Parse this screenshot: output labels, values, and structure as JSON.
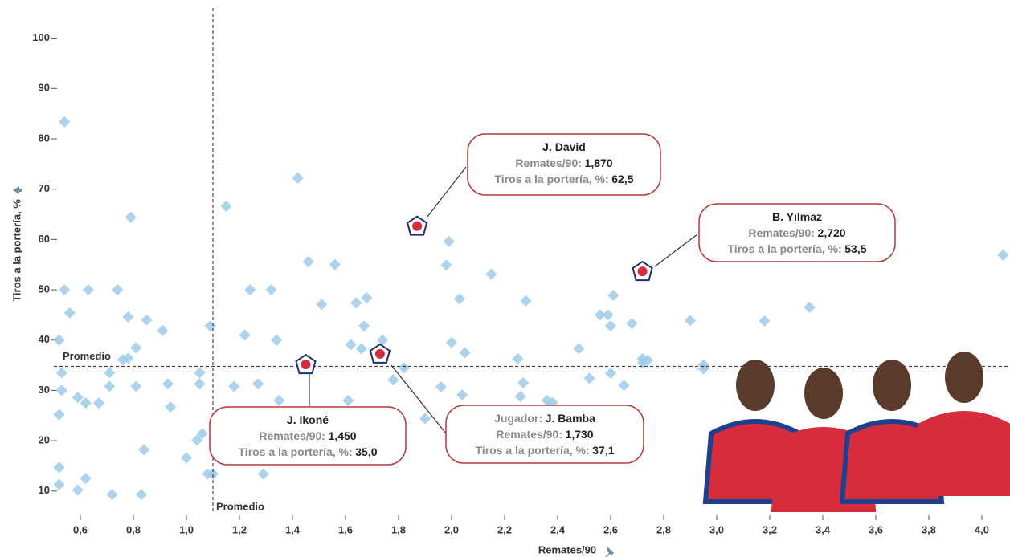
{
  "chart_data": {
    "type": "scatter",
    "x_label": "Remates/90",
    "y_label": "Tiros a la portería, %",
    "xlim": [
      0.5,
      4.1
    ],
    "ylim": [
      5.5,
      106
    ],
    "xticks": [
      {
        "value": 0.6,
        "label": "0,6"
      },
      {
        "value": 0.8,
        "label": "0,8"
      },
      {
        "value": 1.0,
        "label": "1,0"
      },
      {
        "value": 1.2,
        "label": "1,2"
      },
      {
        "value": 1.4,
        "label": "1,4"
      },
      {
        "value": 1.6,
        "label": "1,6"
      },
      {
        "value": 1.8,
        "label": "1,8"
      },
      {
        "value": 2.0,
        "label": "2,0"
      },
      {
        "value": 2.2,
        "label": "2,2"
      },
      {
        "value": 2.4,
        "label": "2,4"
      },
      {
        "value": 2.6,
        "label": "2,6"
      },
      {
        "value": 2.8,
        "label": "2,8"
      },
      {
        "value": 3.0,
        "label": "3,0"
      },
      {
        "value": 3.2,
        "label": "3,2"
      },
      {
        "value": 3.4,
        "label": "3,4"
      },
      {
        "value": 3.6,
        "label": "3,6"
      },
      {
        "value": 3.8,
        "label": "3,8"
      },
      {
        "value": 4.0,
        "label": "4,0"
      }
    ],
    "yticks": [
      10,
      20,
      30,
      40,
      50,
      60,
      70,
      80,
      90,
      100
    ],
    "average_label": "Promedio",
    "x_average": 1.1,
    "y_average": 34.8,
    "color": "#9ecae9",
    "x": [
      0.54,
      0.54,
      0.56,
      0.63,
      0.74,
      0.79,
      0.78,
      0.85,
      0.81,
      0.78,
      0.76,
      0.91,
      0.52,
      0.53,
      0.53,
      0.52,
      0.59,
      0.62,
      0.67,
      0.71,
      0.71,
      0.81,
      0.93,
      0.94,
      0.84,
      1.0,
      1.04,
      1.06,
      1.05,
      1.05,
      1.09,
      1.08,
      1.1,
      0.59,
      0.62,
      0.72,
      0.83,
      0.52,
      0.52,
      1.15,
      1.42,
      1.46,
      1.56,
      1.51,
      1.24,
      1.32,
      1.22,
      1.34,
      1.18,
      1.27,
      1.35,
      1.29,
      1.64,
      1.68,
      1.67,
      1.62,
      1.66,
      1.74,
      1.61,
      1.78,
      1.82,
      1.77,
      1.9,
      1.98,
      1.99,
      2.03,
      2.0,
      2.05,
      1.96,
      2.04,
      2.15,
      2.28,
      2.25,
      2.27,
      2.26,
      2.36,
      2.38,
      2.48,
      2.52,
      2.56,
      2.59,
      2.61,
      2.6,
      2.6,
      2.65,
      2.68,
      2.72,
      2.74,
      2.72,
      2.9,
      2.95,
      2.95,
      3.18,
      3.35,
      4.08
    ],
    "values": [
      83.4,
      50,
      45.4,
      50,
      50,
      64.4,
      44.6,
      44,
      38.5,
      36.4,
      36.1,
      41.9,
      40,
      33.5,
      30,
      25.2,
      28.6,
      27.5,
      27.5,
      30.8,
      33.5,
      30.8,
      31.3,
      26.7,
      18.2,
      16.6,
      20.1,
      21.4,
      33.5,
      31.3,
      42.8,
      13.4,
      13.4,
      10.2,
      12.5,
      9.3,
      9.3,
      14.7,
      11.3,
      66.6,
      72.2,
      55.6,
      55,
      47.1,
      50,
      50,
      41,
      40,
      30.8,
      31.3,
      28,
      13.4,
      47.4,
      48.4,
      42.8,
      39.1,
      38.3,
      40,
      28,
      32.1,
      34.5,
      24.1,
      24.4,
      54.9,
      59.6,
      48.2,
      39.5,
      37.5,
      30.7,
      29.1,
      53.1,
      47.8,
      36.3,
      31.5,
      28.8,
      28,
      27.6,
      38.3,
      32.4,
      45,
      45,
      48.9,
      42.8,
      33.4,
      31,
      43.3,
      36.3,
      36,
      35.5,
      43.9,
      35.1,
      34.3,
      43.8,
      46.5,
      56.9
    ],
    "tooltip_name_key": "Jugador:",
    "tooltip_x_key": "Remates/90:",
    "tooltip_y_key": "Tiros a la portería, %:",
    "highlights": [
      {
        "name": "J. David",
        "x": 1.87,
        "y": 62.5,
        "x_label": "1,870",
        "y_label": "62,5"
      },
      {
        "name": "B. Yılmaz",
        "x": 2.72,
        "y": 53.5,
        "x_label": "2,720",
        "y_label": "53,5"
      },
      {
        "name": "J. Ikoné",
        "x": 1.45,
        "y": 35.0,
        "x_label": "1,450",
        "y_label": "35,0"
      },
      {
        "name": "J. Bamba",
        "x": 1.73,
        "y": 37.1,
        "x_label": "1,730",
        "y_label": "37,1",
        "keyed": true
      }
    ]
  }
}
